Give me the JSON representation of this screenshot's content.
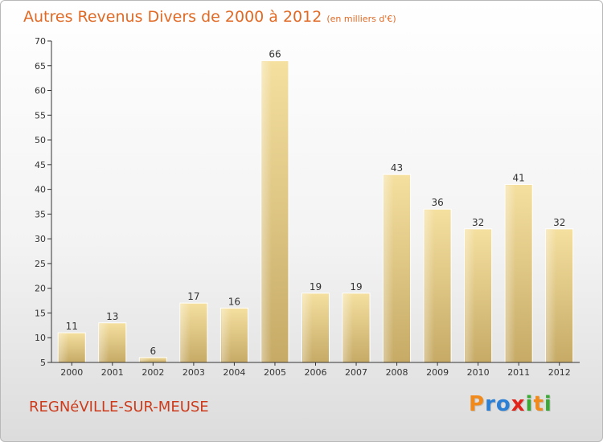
{
  "title": {
    "main": "Autres Revenus Divers de 2000 à 2012",
    "sub": "(en milliers d'€)"
  },
  "footer": {
    "place": "REGNéVILLE-SUR-MEUSE",
    "logo_letters": [
      "P",
      "r",
      "o",
      "x",
      "i",
      "t",
      "i"
    ],
    "logo_colors": [
      "#f08a1c",
      "#2b7fd4",
      "#2b7fd4",
      "#e2231a",
      "#3aa935",
      "#f08a1c",
      "#3aa935"
    ]
  },
  "chart_data": {
    "type": "bar",
    "title": "Autres Revenus Divers de 2000 à 2012",
    "subtitle": "(en milliers d'€)",
    "categories": [
      "2000",
      "2001",
      "2002",
      "2003",
      "2004",
      "2005",
      "2006",
      "2007",
      "2008",
      "2009",
      "2010",
      "2011",
      "2012"
    ],
    "values": [
      11,
      13,
      6,
      17,
      16,
      66,
      19,
      19,
      43,
      36,
      32,
      41,
      32
    ],
    "ylim": [
      5,
      70
    ],
    "yticks": [
      5,
      10,
      15,
      20,
      25,
      30,
      35,
      40,
      45,
      50,
      55,
      60,
      65,
      70
    ],
    "grid": false,
    "colors": {
      "bar_light": "#f3dc9a",
      "bar_dark": "#c8ad6a",
      "axis": "#333333"
    }
  }
}
